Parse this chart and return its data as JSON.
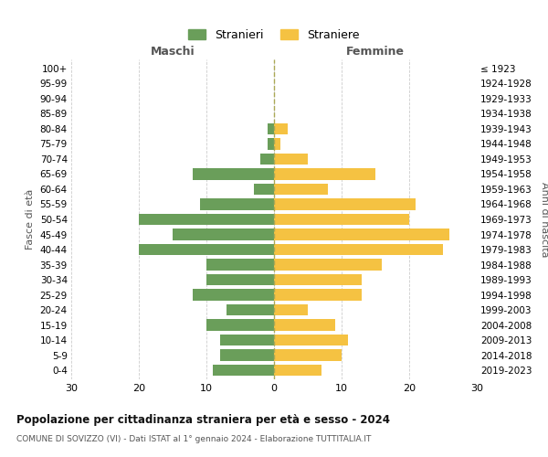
{
  "age_groups": [
    "100+",
    "95-99",
    "90-94",
    "85-89",
    "80-84",
    "75-79",
    "70-74",
    "65-69",
    "60-64",
    "55-59",
    "50-54",
    "45-49",
    "40-44",
    "35-39",
    "30-34",
    "25-29",
    "20-24",
    "15-19",
    "10-14",
    "5-9",
    "0-4"
  ],
  "birth_years": [
    "≤ 1923",
    "1924-1928",
    "1929-1933",
    "1934-1938",
    "1939-1943",
    "1944-1948",
    "1949-1953",
    "1954-1958",
    "1959-1963",
    "1964-1968",
    "1969-1973",
    "1974-1978",
    "1979-1983",
    "1984-1988",
    "1989-1993",
    "1994-1998",
    "1999-2003",
    "2004-2008",
    "2009-2013",
    "2014-2018",
    "2019-2023"
  ],
  "males": [
    0,
    0,
    0,
    0,
    1,
    1,
    2,
    12,
    3,
    11,
    20,
    15,
    20,
    10,
    10,
    12,
    7,
    10,
    8,
    8,
    9
  ],
  "females": [
    0,
    0,
    0,
    0,
    2,
    1,
    5,
    15,
    8,
    21,
    20,
    26,
    25,
    16,
    13,
    13,
    5,
    9,
    11,
    10,
    7
  ],
  "male_color": "#6a9e5a",
  "female_color": "#f5c242",
  "male_label": "Stranieri",
  "female_label": "Straniere",
  "title": "Popolazione per cittadinanza straniera per età e sesso - 2024",
  "subtitle": "COMUNE DI SOVIZZO (VI) - Dati ISTAT al 1° gennaio 2024 - Elaborazione TUTTITALIA.IT",
  "xlabel_left": "Maschi",
  "xlabel_right": "Femmine",
  "ylabel_left": "Fasce di età",
  "ylabel_right": "Anni di nascita",
  "xlim": 30,
  "bg_color": "#ffffff",
  "grid_color": "#cccccc",
  "dashed_line_color": "#aaa855"
}
